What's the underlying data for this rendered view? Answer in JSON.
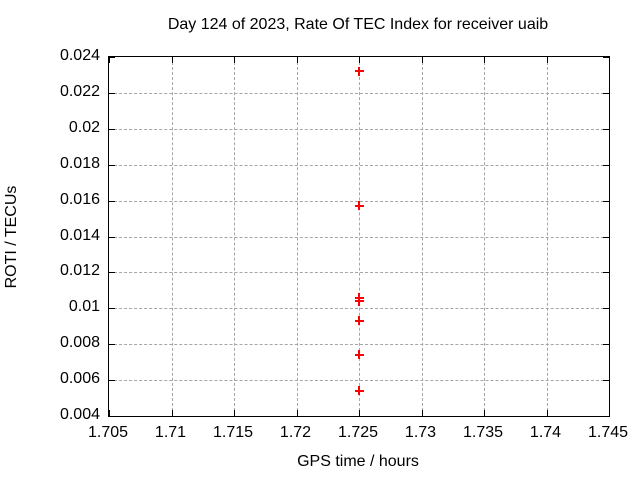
{
  "chart_data": {
    "type": "scatter",
    "title": "Day 124 of 2023, Rate Of TEC Index for receiver uaib",
    "xlabel": "GPS time / hours",
    "ylabel": "ROTI / TECUs",
    "xlim": [
      1.705,
      1.745
    ],
    "ylim": [
      0.004,
      0.024
    ],
    "xticks": [
      1.705,
      1.71,
      1.715,
      1.72,
      1.725,
      1.73,
      1.735,
      1.74,
      1.745
    ],
    "xtick_labels": [
      "1.705",
      "1.71",
      "1.715",
      "1.72",
      "1.725",
      "1.73",
      "1.735",
      "1.74",
      "1.745"
    ],
    "yticks": [
      0.004,
      0.006,
      0.008,
      0.01,
      0.012,
      0.014,
      0.016,
      0.018,
      0.02,
      0.022,
      0.024
    ],
    "ytick_labels": [
      "0.004",
      "0.006",
      "0.008",
      "0.01",
      "0.012",
      "0.014",
      "0.016",
      "0.018",
      "0.02",
      "0.022",
      "0.024"
    ],
    "grid": true,
    "legend": "none",
    "series": [
      {
        "marker": "plus",
        "color": "#ff0000",
        "points": [
          {
            "x": 1.725,
            "y": 0.0232
          },
          {
            "x": 1.725,
            "y": 0.0157
          },
          {
            "x": 1.725,
            "y": 0.0106
          },
          {
            "x": 1.725,
            "y": 0.0104
          },
          {
            "x": 1.725,
            "y": 0.0093
          },
          {
            "x": 1.725,
            "y": 0.0074
          },
          {
            "x": 1.725,
            "y": 0.0054
          }
        ]
      }
    ]
  },
  "colors": {
    "background": "#ffffff",
    "border": "#000000",
    "grid": "#a6a6a6",
    "marker": "#ff0000",
    "text": "#000000"
  }
}
